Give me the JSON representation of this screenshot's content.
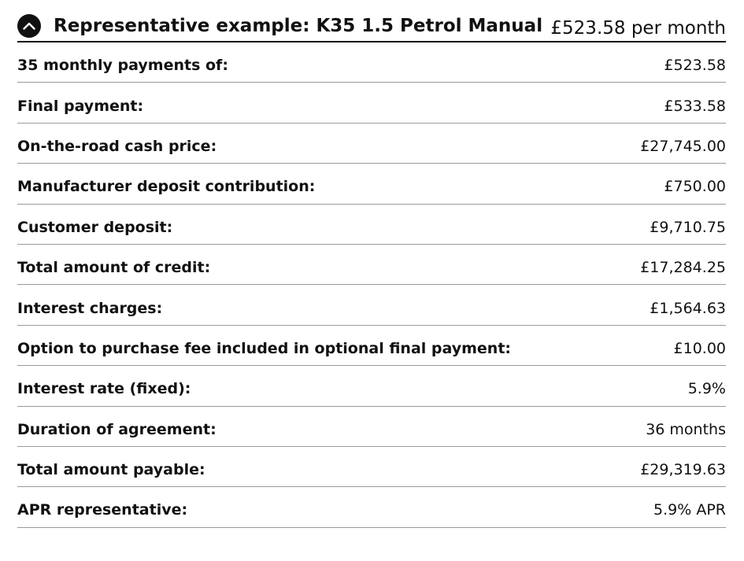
{
  "header": {
    "title": "Representative example: K35 1.5 Petrol Manual",
    "summary": "£523.58 per month",
    "toggle_icon": "chevron-up-icon"
  },
  "rows": [
    {
      "label": "35 monthly payments of:",
      "value": "£523.58"
    },
    {
      "label": "Final payment:",
      "value": "£533.58"
    },
    {
      "label": "On-the-road cash price:",
      "value": "£27,745.00"
    },
    {
      "label": "Manufacturer deposit contribution:",
      "value": "£750.00"
    },
    {
      "label": "Customer deposit:",
      "value": "£9,710.75"
    },
    {
      "label": "Total amount of credit:",
      "value": "£17,284.25"
    },
    {
      "label": "Interest charges:",
      "value": "£1,564.63"
    },
    {
      "label": "Option to purchase fee included in optional final payment:",
      "value": "£10.00"
    },
    {
      "label": "Interest rate (fixed):",
      "value": "5.9%"
    },
    {
      "label": "Duration of agreement:",
      "value": "36 months"
    },
    {
      "label": "Total amount payable:",
      "value": "£29,319.63"
    },
    {
      "label": "APR representative:",
      "value": "5.9% APR"
    }
  ]
}
